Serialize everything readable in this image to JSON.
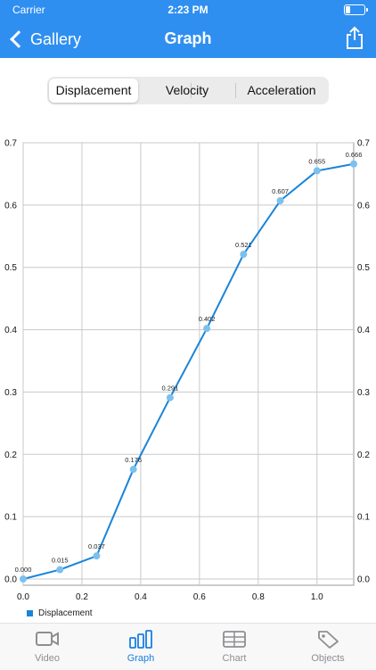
{
  "status": {
    "carrier": "Carrier",
    "time": "2:23 PM",
    "battery_level": 0.25
  },
  "nav": {
    "back_label": "Gallery",
    "title": "Graph"
  },
  "segments": [
    {
      "label": "Displacement",
      "active": true
    },
    {
      "label": "Velocity",
      "active": false
    },
    {
      "label": "Acceleration",
      "active": false
    }
  ],
  "chart_data": {
    "type": "line",
    "series": [
      {
        "name": "Displacement",
        "color": "#1a84d8",
        "x": [
          0.0,
          0.125,
          0.25,
          0.375,
          0.5,
          0.625,
          0.75,
          0.875,
          1.0,
          1.125
        ],
        "values": [
          0.0,
          0.015,
          0.037,
          0.176,
          0.291,
          0.402,
          0.521,
          0.607,
          0.655,
          0.666
        ],
        "labels": [
          "0.000",
          "0.015",
          "0.037",
          "0.176",
          "0.291",
          "0.402",
          "0.521",
          "0.607",
          "0.655",
          "0.666"
        ]
      }
    ],
    "xlim": [
      0.0,
      1.125
    ],
    "ylim": [
      -0.01,
      0.7
    ],
    "x_ticks": [
      0.0,
      0.2,
      0.4,
      0.6,
      0.8,
      1.0
    ],
    "x_tick_labels": [
      "0.0",
      "0.2",
      "0.4",
      "0.6",
      "0.8",
      "1.0"
    ],
    "y_ticks": [
      0.0,
      0.1,
      0.2,
      0.3,
      0.4,
      0.5,
      0.6,
      0.7
    ],
    "y_tick_labels": [
      "0.0",
      "0.1",
      "0.2",
      "0.3",
      "0.4",
      "0.5",
      "0.6",
      "0.7"
    ],
    "grid": true,
    "legend": "bottom-left"
  },
  "legend_label": "Displacement",
  "tabs": [
    {
      "label": "Video",
      "icon": "video-icon",
      "active": false
    },
    {
      "label": "Graph",
      "icon": "bar-chart-icon",
      "active": true
    },
    {
      "label": "Chart",
      "icon": "table-icon",
      "active": false
    },
    {
      "label": "Objects",
      "icon": "tag-icon",
      "active": false
    }
  ]
}
